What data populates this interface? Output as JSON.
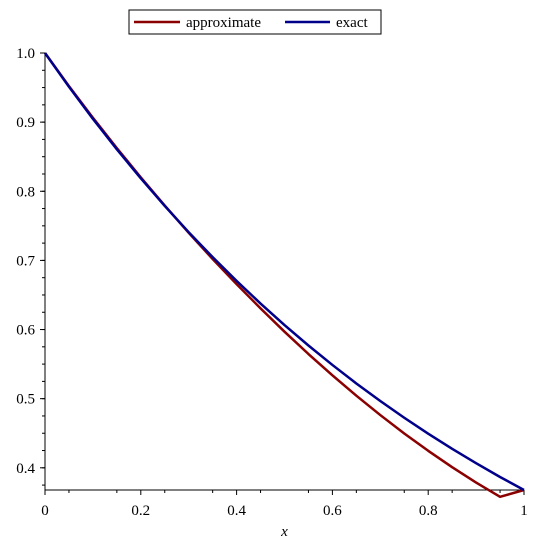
{
  "chart_data": {
    "type": "line",
    "title": "",
    "xlabel": "x",
    "ylabel": "",
    "xlim": [
      0,
      1
    ],
    "ylim": [
      0.3679,
      1.0
    ],
    "grid": false,
    "legend_position": "top-center",
    "x_ticks": [
      "0",
      "0.2",
      "0.4",
      "0.6",
      "0.8",
      "1"
    ],
    "y_ticks": [
      "0.4",
      "0.5",
      "0.6",
      "0.7",
      "0.8",
      "0.9",
      "1.0"
    ],
    "x": [
      0,
      0.05,
      0.1,
      0.15,
      0.2,
      0.25,
      0.3,
      0.35,
      0.4,
      0.45,
      0.5,
      0.55,
      0.6,
      0.65,
      0.7,
      0.75,
      0.8,
      0.85,
      0.9,
      0.95,
      1.0
    ],
    "series": [
      {
        "name": "approximate",
        "color": "#8b0000",
        "values": [
          1.0,
          0.9521,
          0.9064,
          0.8624,
          0.8201,
          0.7793,
          0.7399,
          0.702,
          0.6656,
          0.6306,
          0.5969,
          0.5646,
          0.5338,
          0.5043,
          0.4763,
          0.4497,
          0.4246,
          0.4009,
          0.3787,
          0.358,
          0.3679
        ]
      },
      {
        "name": "exact",
        "color": "#00008b",
        "values": [
          1.0,
          0.9512,
          0.9048,
          0.8607,
          0.8187,
          0.7788,
          0.7408,
          0.7047,
          0.6703,
          0.6376,
          0.6065,
          0.5769,
          0.5488,
          0.522,
          0.4966,
          0.4724,
          0.4493,
          0.4274,
          0.4066,
          0.3867,
          0.3679
        ]
      }
    ]
  }
}
